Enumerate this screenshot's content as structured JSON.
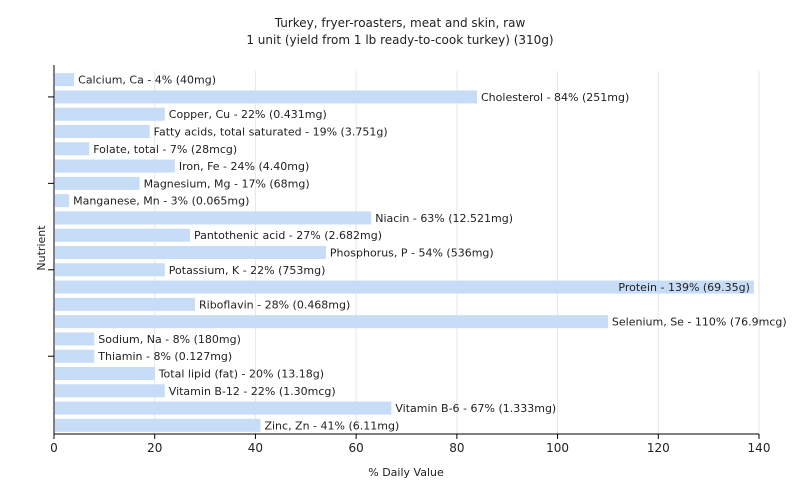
{
  "chart_data": {
    "type": "bar",
    "orientation": "horizontal",
    "title": "Turkey, fryer-roasters, meat and skin, raw",
    "subtitle": "1 unit (yield from 1 lb ready-to-cook turkey) (310g)",
    "xlabel": "% Daily Value",
    "ylabel": "Nutrient",
    "xlim": [
      0,
      140
    ],
    "xticks": [
      0,
      20,
      40,
      60,
      80,
      100,
      120,
      140
    ],
    "grid": true,
    "bar_color": "#c6dcf7",
    "categories": [
      "Calcium, Ca",
      "Cholesterol",
      "Copper, Cu",
      "Fatty acids, total saturated",
      "Folate, total",
      "Iron, Fe",
      "Magnesium, Mg",
      "Manganese, Mn",
      "Niacin",
      "Pantothenic acid",
      "Phosphorus, P",
      "Potassium, K",
      "Protein",
      "Riboflavin",
      "Selenium, Se",
      "Sodium, Na",
      "Thiamin",
      "Total lipid (fat)",
      "Vitamin B-12",
      "Vitamin B-6",
      "Zinc, Zn"
    ],
    "values": [
      4,
      84,
      22,
      19,
      7,
      24,
      17,
      3,
      63,
      27,
      54,
      22,
      139,
      28,
      110,
      8,
      8,
      20,
      22,
      67,
      41
    ],
    "labels": [
      "Calcium, Ca - 4% (40mg)",
      "Cholesterol - 84% (251mg)",
      "Copper, Cu - 22% (0.431mg)",
      "Fatty acids, total saturated - 19% (3.751g)",
      "Folate, total - 7% (28mcg)",
      "Iron, Fe - 24% (4.40mg)",
      "Magnesium, Mg - 17% (68mg)",
      "Manganese, Mn - 3% (0.065mg)",
      "Niacin - 63% (12.521mg)",
      "Pantothenic acid - 27% (2.682mg)",
      "Phosphorus, P - 54% (536mg)",
      "Potassium, K - 22% (753mg)",
      "Protein - 139% (69.35g)",
      "Riboflavin - 28% (0.468mg)",
      "Selenium, Se - 110% (76.9mcg)",
      "Sodium, Na - 8% (180mg)",
      "Thiamin - 8% (0.127mg)",
      "Total lipid (fat) - 20% (13.18g)",
      "Vitamin B-12 - 22% (1.30mcg)",
      "Vitamin B-6 - 67% (1.333mg)",
      "Zinc, Zn - 41% (6.11mg)"
    ]
  }
}
